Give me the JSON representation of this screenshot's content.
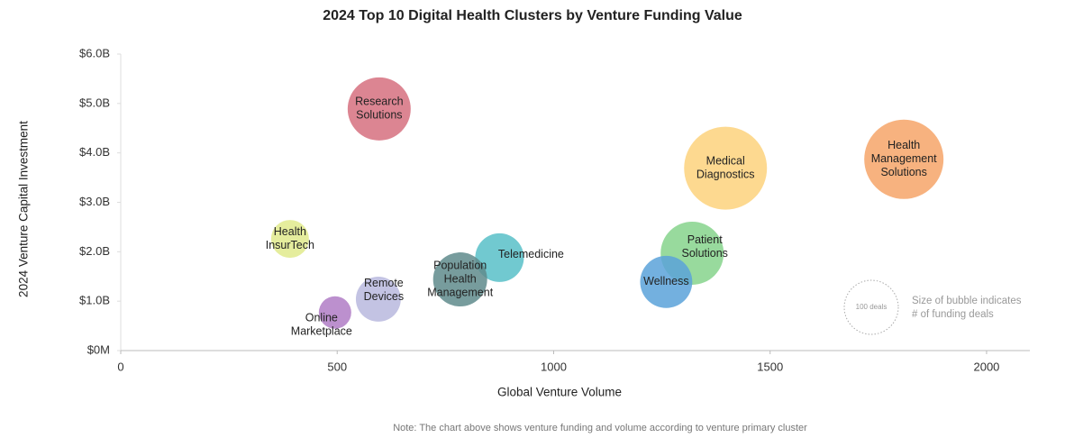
{
  "chart_data": {
    "type": "bubble",
    "title": "2024 Top 10 Digital Health Clusters by Venture Funding Value",
    "x_label": "Global Venture Volume",
    "y_label": "2024 Venture Capital Investment",
    "note": "Note: The chart above shows venture funding and volume according to venture primary cluster",
    "xlim": [
      0,
      2100
    ],
    "xticks": [
      0,
      500,
      1000,
      1500,
      2000
    ],
    "ylim": [
      0,
      6
    ],
    "yticks": [
      {
        "value": 0,
        "label": "$0M"
      },
      {
        "value": 1,
        "label": "$1.0B"
      },
      {
        "value": 2,
        "label": "$2.0B"
      },
      {
        "value": 3,
        "label": "$3.0B"
      },
      {
        "value": 4,
        "label": "$4.0B"
      },
      {
        "value": 5,
        "label": "$5.0B"
      },
      {
        "value": 6,
        "label": "$6.0B"
      }
    ],
    "points": [
      {
        "label": [
          "Research",
          "Solutions"
        ],
        "x": 597,
        "y": 4.89,
        "size": 136,
        "color": "#d6707f"
      },
      {
        "label": [
          "Medical",
          "Diagnostics"
        ],
        "x": 1397,
        "y": 3.69,
        "size": 235,
        "color": "#fdd27c"
      },
      {
        "label": [
          "Health",
          "Management",
          "Solutions"
        ],
        "x": 1809,
        "y": 3.87,
        "size": 215,
        "color": "#f6a468"
      },
      {
        "label": [
          "Health",
          "InsurTech"
        ],
        "x": 391,
        "y": 2.26,
        "size": 49,
        "color": "#e1ea8c"
      },
      {
        "label": [
          "Telemedicine"
        ],
        "x": 875,
        "y": 1.88,
        "size": 81,
        "color": "#58c0c8"
      },
      {
        "label": [
          "Patient",
          "Solutions"
        ],
        "x": 1320,
        "y": 1.97,
        "size": 136,
        "color": "#86d38c"
      },
      {
        "label": [
          "Population",
          "Health",
          "Management"
        ],
        "x": 784,
        "y": 1.44,
        "size": 100,
        "color": "#5f8b8c"
      },
      {
        "label": [
          "Wellness"
        ],
        "x": 1260,
        "y": 1.39,
        "size": 93,
        "color": "#5ba2d9"
      },
      {
        "label": [
          "Remote",
          "Devices"
        ],
        "x": 595,
        "y": 1.04,
        "size": 69,
        "color": "#b9b8de"
      },
      {
        "label": [
          "Online",
          "Marketplace"
        ],
        "x": 495,
        "y": 0.77,
        "size": 36,
        "color": "#b07cc6"
      }
    ],
    "size_legend": {
      "value": 100,
      "label": "100 deals",
      "note": [
        "Size of bubble indicates",
        "# of funding deals"
      ]
    }
  }
}
